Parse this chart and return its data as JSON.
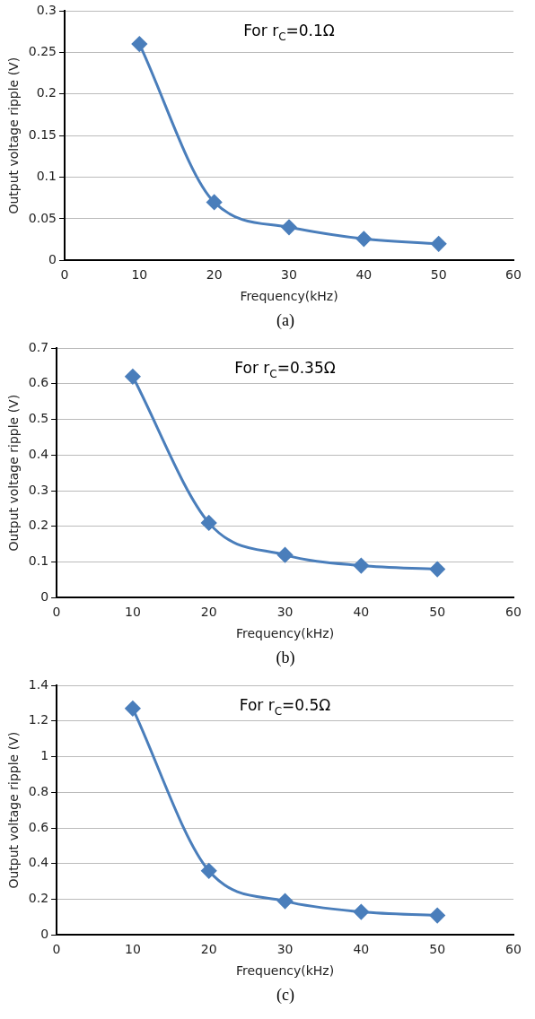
{
  "chart_data": [
    {
      "type": "line",
      "x": [
        10,
        20,
        30,
        40,
        50
      ],
      "xlabel": "Frequency(kHz)",
      "ylabel": "Output voltage ripple (V)",
      "series": [
        {
          "color": "#4a7ebb",
          "values": [
            0.26,
            0.07,
            0.04,
            0.026,
            0.02
          ]
        }
      ],
      "xlim": [
        0,
        60
      ],
      "xticks": [
        0,
        10,
        20,
        30,
        40,
        50,
        60
      ],
      "ylim": [
        0,
        0.3
      ],
      "yticks": [
        0,
        0.05,
        0.1,
        0.15,
        0.2,
        0.25,
        0.3
      ],
      "grid": "y",
      "legend": false,
      "marker": "diamond",
      "line_style": "solid",
      "annotations": [
        "For r$_{C}$=0.1Ω",
        "(a)"
      ]
    },
    {
      "type": "line",
      "x": [
        10,
        20,
        30,
        40,
        50
      ],
      "xlabel": "Frequency(kHz)",
      "ylabel": "Output voltage ripple (V)",
      "series": [
        {
          "color": "#4a7ebb",
          "values": [
            0.62,
            0.21,
            0.12,
            0.09,
            0.08
          ]
        }
      ],
      "xlim": [
        0,
        60
      ],
      "xticks": [
        0,
        10,
        20,
        30,
        40,
        50,
        60
      ],
      "ylim": [
        0,
        0.7
      ],
      "yticks": [
        0,
        0.1,
        0.2,
        0.3,
        0.4,
        0.5,
        0.6,
        0.7
      ],
      "grid": "y",
      "legend": false,
      "marker": "diamond",
      "line_style": "solid",
      "annotations": [
        "For r$_{C}$=0.35Ω",
        "(b)"
      ]
    },
    {
      "type": "line",
      "x": [
        10,
        20,
        30,
        40,
        50
      ],
      "xlabel": "Frequency(kHz)",
      "ylabel": "Output voltage ripple (V)",
      "series": [
        {
          "color": "#4a7ebb",
          "values": [
            1.27,
            0.36,
            0.19,
            0.13,
            0.11
          ]
        }
      ],
      "xlim": [
        0,
        60
      ],
      "xticks": [
        0,
        10,
        20,
        30,
        40,
        50,
        60
      ],
      "ylim": [
        0,
        1.4
      ],
      "yticks": [
        0,
        0.2,
        0.4,
        0.6,
        0.8,
        1,
        1.2,
        1.4
      ],
      "grid": "y",
      "legend": false,
      "marker": "diamond",
      "line_style": "solid",
      "annotations": [
        "For r$_{C}$=0.5Ω",
        "(c)"
      ]
    }
  ]
}
